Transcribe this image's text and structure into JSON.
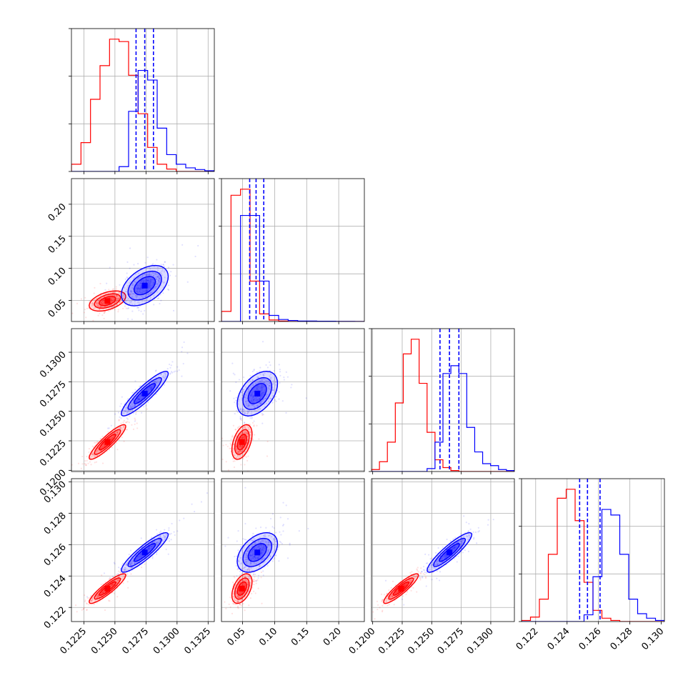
{
  "chart_data": {
    "type": "corner",
    "parameters": 4,
    "grid": true,
    "colors": {
      "red": "#ff0000",
      "blue": "#0000ff",
      "grid": "#b0b0b0"
    },
    "series": [
      {
        "color": "red",
        "center": [
          0.1244,
          0.049,
          0.1224,
          0.1232
        ],
        "sd": [
          0.0007,
          0.0075,
          0.0007,
          0.00045
        ],
        "hist": [
          [
            3,
            12,
            30,
            44,
            55,
            54,
            40,
            24,
            10,
            3,
            1,
            0,
            0,
            0,
            0
          ],
          [
            20,
            250,
            262,
            80,
            15,
            3,
            1,
            0,
            0,
            0,
            0,
            0,
            0,
            0,
            0
          ],
          [
            2,
            10,
            30,
            70,
            120,
            135,
            90,
            40,
            12,
            4,
            1,
            0,
            0,
            0,
            0,
            0,
            0,
            0
          ],
          [
            1,
            4,
            20,
            60,
            110,
            118,
            90,
            35,
            10,
            3,
            1,
            0,
            0,
            0,
            0,
            0
          ]
        ]
      },
      {
        "color": "blue",
        "center": [
          0.1274,
          0.073,
          0.1265,
          0.1255
        ],
        "sd": [
          0.0009,
          0.015,
          0.0009,
          0.0006
        ],
        "hist": [
          [
            0,
            0,
            0,
            0,
            0,
            2,
            25,
            42,
            38,
            18,
            7,
            3,
            1.5,
            0.8,
            0.3
          ],
          [
            0,
            0,
            210,
            210,
            80,
            12,
            4,
            2,
            1,
            1,
            0.5,
            0.5,
            0.3,
            0.2,
            0.1
          ],
          [
            0,
            0,
            0,
            0,
            0,
            0,
            0,
            3,
            30,
            100,
            108,
            100,
            45,
            20,
            8,
            6,
            2,
            1
          ],
          [
            0,
            0,
            0,
            0,
            0,
            0,
            0,
            6,
            40,
            100,
            95,
            60,
            20,
            7,
            3,
            1
          ]
        ],
        "quantiles": [
          [
            0.1267,
            0.1274,
            0.1281
          ],
          [
            0.061,
            0.071,
            0.083
          ],
          [
            0.1257,
            0.1265,
            0.1273
          ],
          [
            0.1248,
            0.1253,
            0.1261
          ]
        ]
      }
    ],
    "axes": [
      {
        "range": [
          0.1215,
          0.133
        ],
        "ticks": [
          0.1225,
          0.125,
          0.1275,
          0.13,
          0.1325
        ],
        "tick_labels": [
          "0.1225",
          "0.1250",
          "0.1275",
          "0.1300",
          "0.1325"
        ]
      },
      {
        "range": [
          0.017,
          0.24
        ],
        "ticks": [
          0.05,
          0.1,
          0.15,
          0.2
        ],
        "tick_labels": [
          "0.05",
          "0.10",
          "0.15",
          "0.20"
        ]
      },
      {
        "range": [
          0.1199,
          0.132
        ],
        "ticks": [
          0.12,
          0.1225,
          0.125,
          0.1275,
          0.13
        ],
        "tick_labels": [
          "0.1200",
          "0.1225",
          "0.1250",
          "0.1275",
          "0.1300"
        ]
      },
      {
        "range": [
          0.1211,
          0.1302
        ],
        "ticks": [
          0.122,
          0.124,
          0.126,
          0.128,
          0.13
        ],
        "tick_labels": [
          "0.122",
          "0.124",
          "0.126",
          "0.128",
          "0.130"
        ]
      }
    ]
  }
}
